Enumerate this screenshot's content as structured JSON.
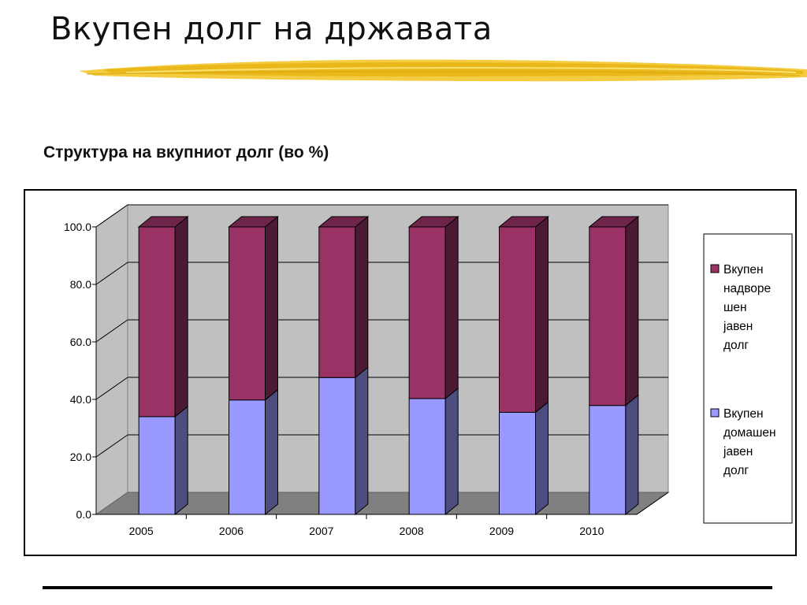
{
  "slide": {
    "title": "Вкупен долг на државата"
  },
  "chart_data": {
    "type": "bar",
    "stacked": true,
    "three_d": true,
    "title": "Структура на вкупниот долг (во %)",
    "categories": [
      "2005",
      "2006",
      "2007",
      "2008",
      "2009",
      "2010"
    ],
    "series": [
      {
        "name": "Вкупен домашен јавен долг",
        "legend_lines": [
          "Вкупен",
          "домашен",
          "јавен",
          "долг"
        ],
        "color": "#9999ff",
        "values": [
          34.0,
          39.8,
          47.6,
          40.3,
          35.5,
          37.9
        ]
      },
      {
        "name": "Вкупен надворешен јавен долг",
        "legend_lines": [
          "Вкупен",
          "надворе",
          "шен",
          "јавен",
          "долг"
        ],
        "color": "#993366",
        "values": [
          66.0,
          60.2,
          52.4,
          59.7,
          64.5,
          62.1
        ]
      }
    ],
    "ylim": [
      0,
      100
    ],
    "yticks": [
      "0.0",
      "20.0",
      "40.0",
      "60.0",
      "80.0",
      "100.0"
    ],
    "grid": true,
    "legend_position": "right",
    "colors": {
      "back_wall": "#c0c0c0",
      "floor": "#808080"
    }
  }
}
